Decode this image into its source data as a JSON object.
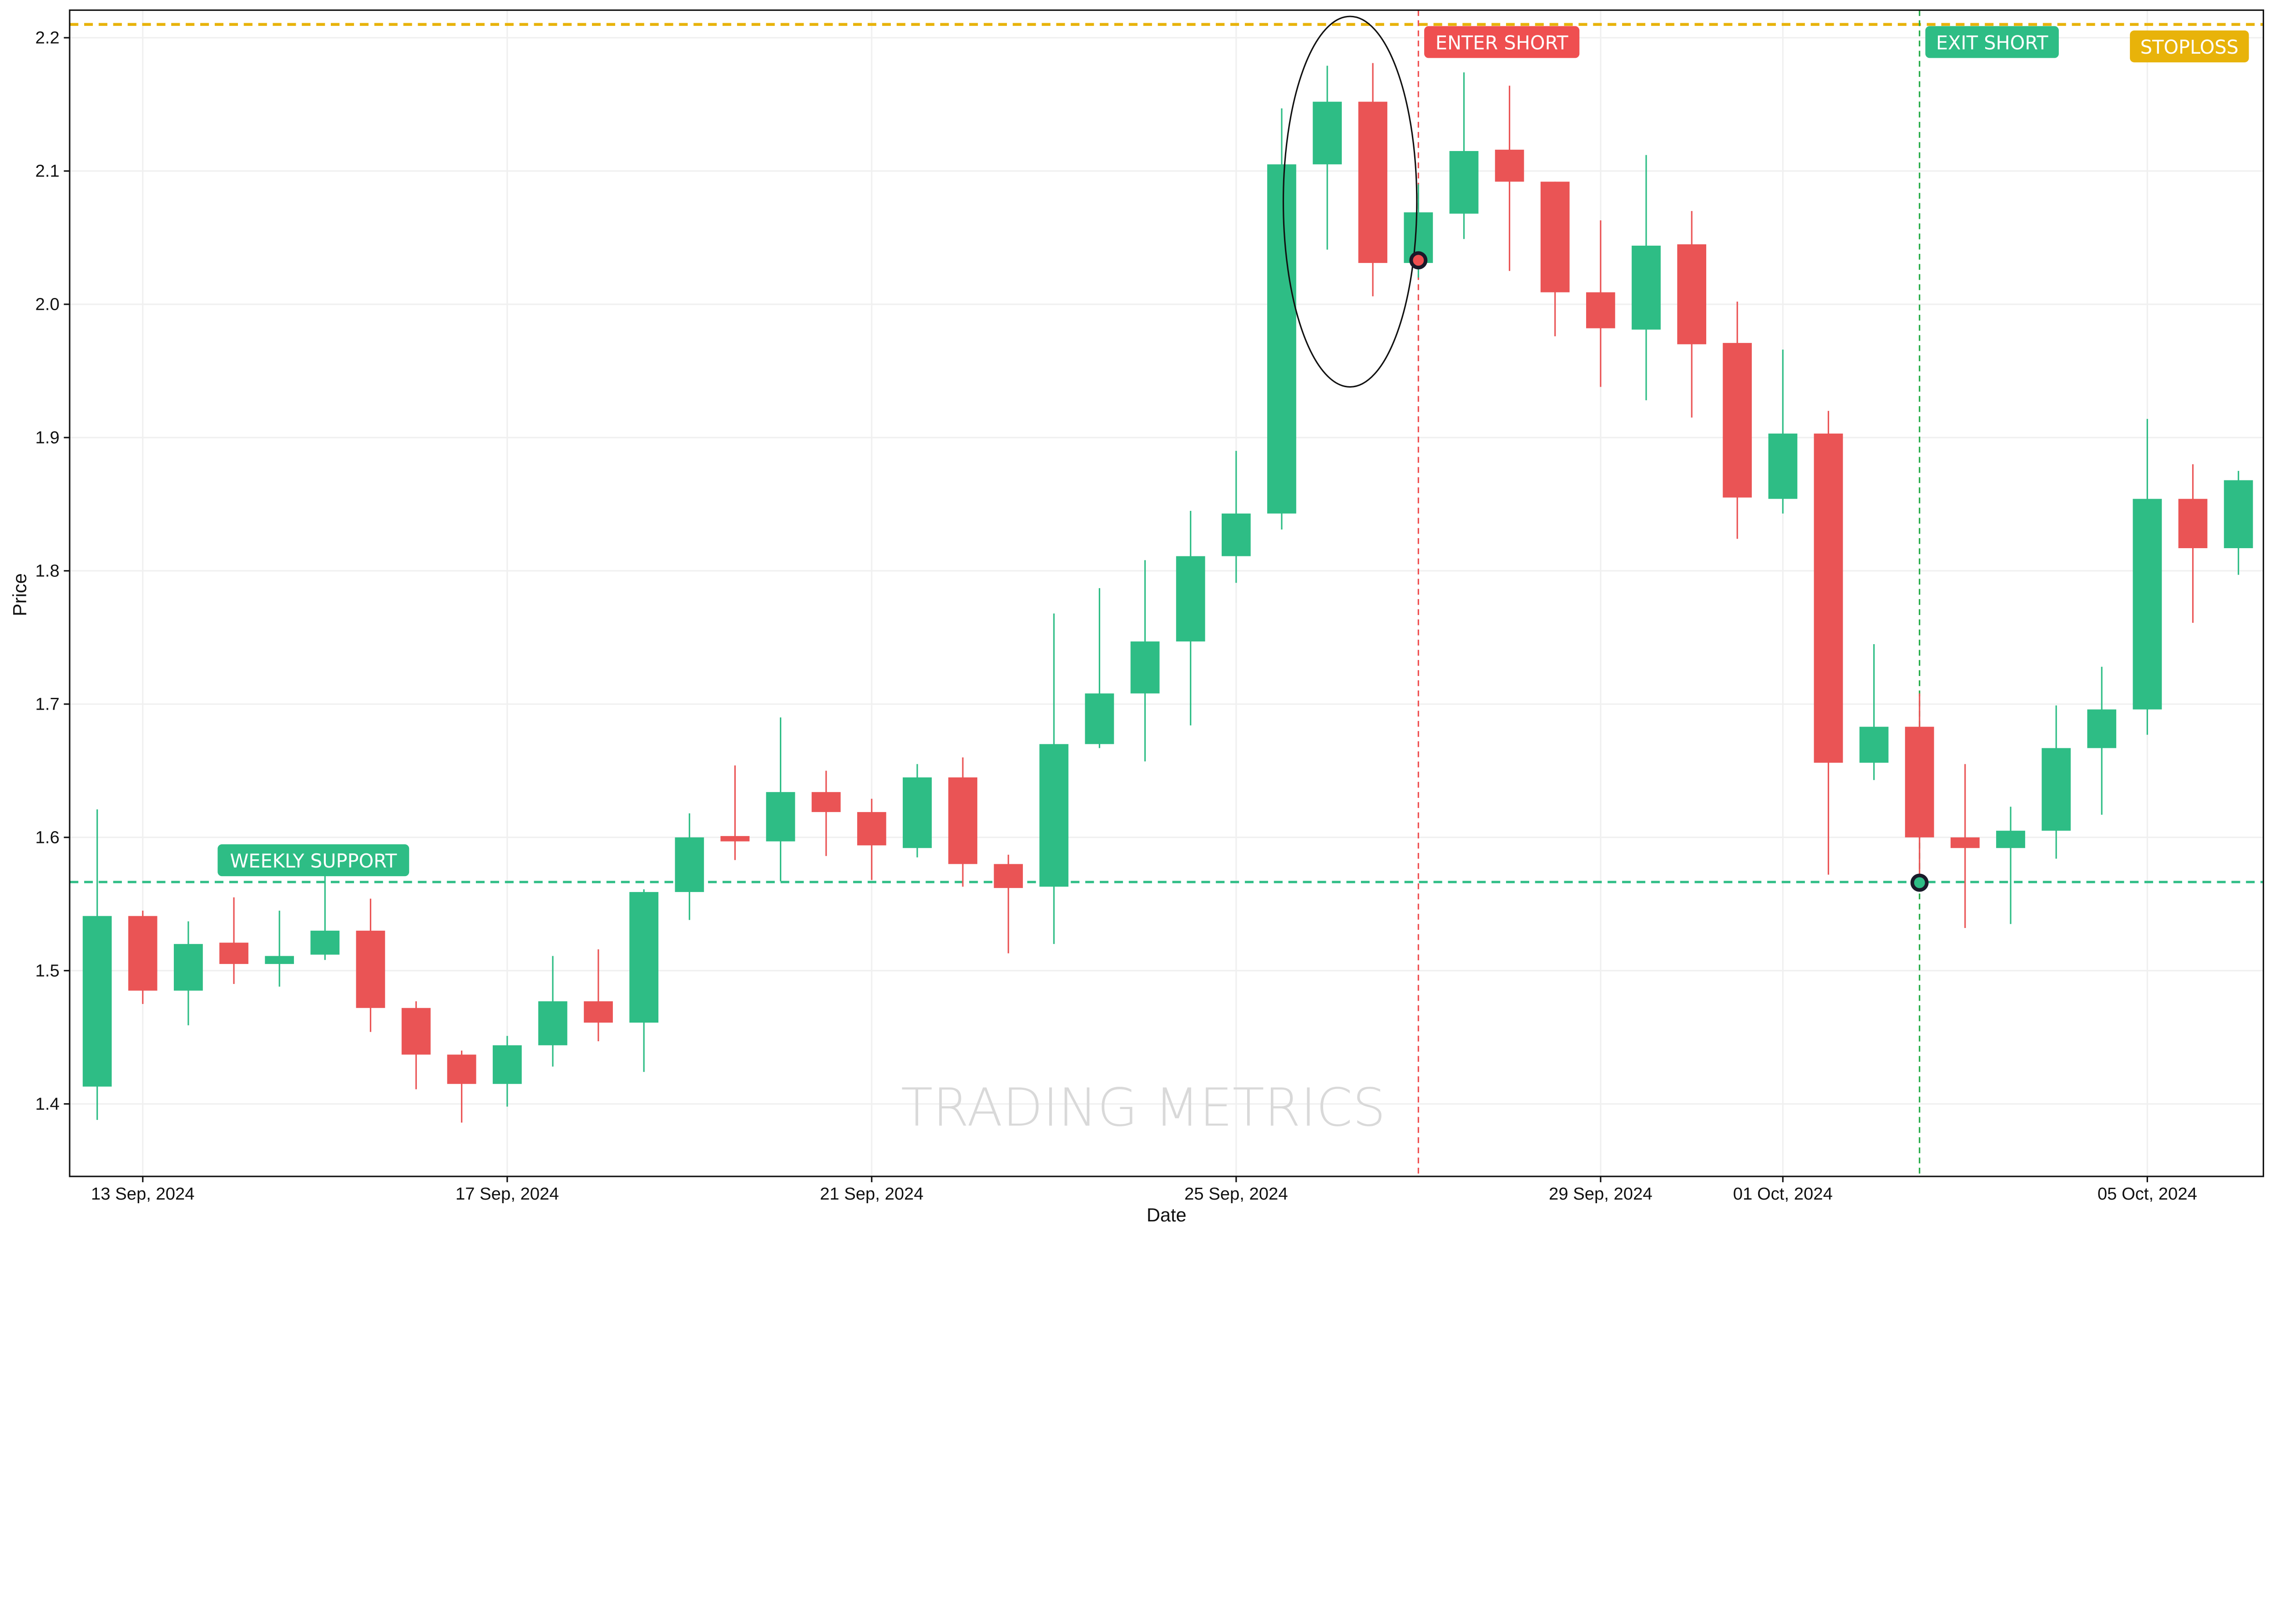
{
  "chart_data": {
    "type": "candlestick",
    "xlabel": "Date",
    "ylabel": "Price",
    "ylim": [
      1.3456,
      2.2207
    ],
    "y_ticks": [
      "1.4",
      "1.5",
      "1.6",
      "1.7",
      "1.8",
      "1.9",
      "2.0",
      "2.1",
      "2.2"
    ],
    "x_ticks": [
      {
        "t": "2024-09-13 00:00",
        "label": "13 Sep, 2024"
      },
      {
        "t": "2024-09-17 00:00",
        "label": "17 Sep, 2024"
      },
      {
        "t": "2024-09-21 00:00",
        "label": "21 Sep, 2024"
      },
      {
        "t": "2024-09-25 00:00",
        "label": "25 Sep, 2024"
      },
      {
        "t": "2024-09-29 00:00",
        "label": "29 Sep, 2024"
      },
      {
        "t": "2024-10-01 00:00",
        "label": "01 Oct, 2024"
      },
      {
        "t": "2024-10-05 00:00",
        "label": "05 Oct, 2024"
      }
    ],
    "grid": true,
    "interval": "12h",
    "first_candle": "2024-09-12 12:00",
    "candles": [
      [
        1.413,
        1.621,
        1.388,
        1.541
      ],
      [
        1.541,
        1.545,
        1.475,
        1.485
      ],
      [
        1.485,
        1.537,
        1.459,
        1.52
      ],
      [
        1.521,
        1.555,
        1.49,
        1.505
      ],
      [
        1.505,
        1.545,
        1.488,
        1.511
      ],
      [
        1.512,
        1.571,
        1.508,
        1.53
      ],
      [
        1.53,
        1.554,
        1.454,
        1.472
      ],
      [
        1.472,
        1.477,
        1.411,
        1.437
      ],
      [
        1.437,
        1.44,
        1.386,
        1.415
      ],
      [
        1.415,
        1.451,
        1.398,
        1.444
      ],
      [
        1.444,
        1.511,
        1.428,
        1.477
      ],
      [
        1.477,
        1.516,
        1.447,
        1.461
      ],
      [
        1.461,
        1.561,
        1.424,
        1.559
      ],
      [
        1.559,
        1.618,
        1.538,
        1.6
      ],
      [
        1.601,
        1.654,
        1.583,
        1.597
      ],
      [
        1.597,
        1.69,
        1.567,
        1.634
      ],
      [
        1.634,
        1.65,
        1.586,
        1.619
      ],
      [
        1.619,
        1.629,
        1.568,
        1.594
      ],
      [
        1.592,
        1.655,
        1.585,
        1.645
      ],
      [
        1.645,
        1.66,
        1.563,
        1.58
      ],
      [
        1.58,
        1.587,
        1.513,
        1.562
      ],
      [
        1.563,
        1.768,
        1.52,
        1.67
      ],
      [
        1.67,
        1.787,
        1.667,
        1.708
      ],
      [
        1.708,
        1.808,
        1.657,
        1.747
      ],
      [
        1.747,
        1.845,
        1.684,
        1.811
      ],
      [
        1.811,
        1.89,
        1.791,
        1.843
      ],
      [
        1.843,
        2.147,
        1.831,
        2.105
      ],
      [
        2.105,
        2.179,
        2.041,
        2.152
      ],
      [
        2.152,
        2.181,
        2.006,
        2.031
      ],
      [
        2.031,
        2.09,
        2.02,
        2.069
      ],
      [
        2.068,
        2.174,
        2.049,
        2.115
      ],
      [
        2.116,
        2.164,
        2.025,
        2.092
      ],
      [
        2.092,
        2.092,
        1.976,
        2.009
      ],
      [
        2.009,
        2.063,
        1.938,
        1.982
      ],
      [
        1.981,
        2.112,
        1.928,
        2.044
      ],
      [
        2.045,
        2.07,
        1.915,
        1.97
      ],
      [
        1.971,
        2.002,
        1.824,
        1.855
      ],
      [
        1.854,
        1.966,
        1.843,
        1.903
      ],
      [
        1.903,
        1.92,
        1.572,
        1.656
      ],
      [
        1.656,
        1.745,
        1.643,
        1.683
      ],
      [
        1.683,
        1.708,
        1.561,
        1.6
      ],
      [
        1.6,
        1.655,
        1.532,
        1.592
      ],
      [
        1.592,
        1.623,
        1.535,
        1.605
      ],
      [
        1.605,
        1.699,
        1.584,
        1.667
      ],
      [
        1.667,
        1.728,
        1.617,
        1.696
      ],
      [
        1.696,
        1.914,
        1.677,
        1.854
      ],
      [
        1.854,
        1.88,
        1.761,
        1.817
      ],
      [
        1.817,
        1.875,
        1.797,
        1.868
      ]
    ],
    "candle_fields": [
      "open",
      "high",
      "low",
      "close"
    ],
    "colors": {
      "up": "#2ebd85",
      "down": "#ea5455",
      "stoploss": "#e8b30a",
      "support": "#2ebd85",
      "enter": "#ef4f50",
      "exit": "#2ebd85"
    },
    "annotations": {
      "stoploss": {
        "price": 2.21,
        "label": "STOPLOSS"
      },
      "weekly_support": {
        "price": 1.5665,
        "label": "WEEKLY SUPPORT"
      },
      "enter_short": {
        "t": "2024-09-27 00:00",
        "price": 2.033,
        "label": "ENTER SHORT"
      },
      "exit_short": {
        "t": "2024-10-02 12:00",
        "price": 1.566,
        "label": "EXIT SHORT"
      },
      "highlight_ellipse": {
        "t": "2024-09-26 06:00",
        "price_center": 2.077,
        "price_half_range": 0.139
      }
    }
  },
  "watermark": "TRADING METRICS"
}
